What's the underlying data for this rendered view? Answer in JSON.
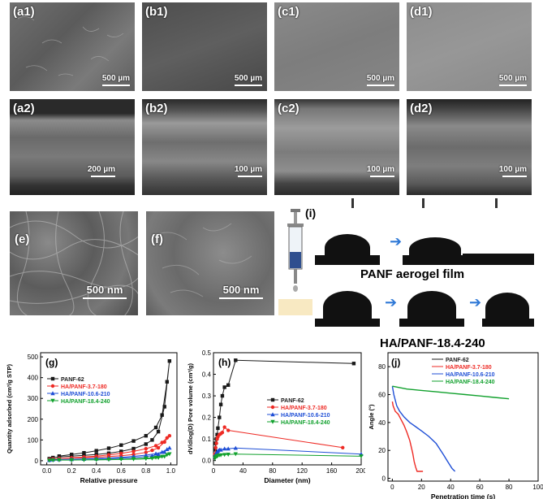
{
  "panels": {
    "a1": {
      "label": "(a1)",
      "scale": "500 µm"
    },
    "b1": {
      "label": "(b1)",
      "scale": "500 µm"
    },
    "c1": {
      "label": "(c1)",
      "scale": "500 µm"
    },
    "d1": {
      "label": "(d1)",
      "scale": "500 µm"
    },
    "a2": {
      "label": "(a2)",
      "scale": "200 µm"
    },
    "b2": {
      "label": "(b2)",
      "scale": "100 µm"
    },
    "c2": {
      "label": "(c2)",
      "scale": "100 µm"
    },
    "d2": {
      "label": "(d2)",
      "scale": "100 µm"
    },
    "e": {
      "label": "(e)",
      "scale": "500 nm"
    },
    "f": {
      "label": "(f)",
      "scale": "500 nm"
    },
    "i": {
      "label": "(i)"
    }
  },
  "captions": {
    "panf": "PANF aerogel film",
    "ha": "HA/PANF-18.4-240"
  },
  "colors": {
    "PANF-62": "#1a1a1a",
    "HA/PANF-3.7-180": "#ee2a24",
    "HA/PANF-10.6-210": "#1f4fd6",
    "HA/PANF-18.4-240": "#12a12e"
  },
  "chart_data": [
    {
      "type": "line",
      "panel": "(g)",
      "xlabel": "Relative pressure",
      "ylabel": "Quantity adsorbed (cm³/g STP)",
      "xlim": [
        -0.05,
        1.05
      ],
      "ylim": [
        -20,
        520
      ],
      "xticks": [
        "0.0",
        "0.2",
        "0.4",
        "0.6",
        "0.8",
        "1.0"
      ],
      "yticks": [
        "0",
        "100",
        "200",
        "300",
        "400",
        "500"
      ],
      "legend": "upper-left",
      "series": [
        {
          "name": "PANF-62",
          "color": "#1a1a1a",
          "marker": "square",
          "x": [
            0.02,
            0.05,
            0.1,
            0.2,
            0.3,
            0.4,
            0.5,
            0.6,
            0.7,
            0.8,
            0.85,
            0.9,
            0.95,
            0.99,
            0.97,
            0.93,
            0.88,
            0.8,
            0.7,
            0.6,
            0.5,
            0.4,
            0.3,
            0.2,
            0.1
          ],
          "y": [
            10,
            15,
            18,
            22,
            26,
            30,
            36,
            45,
            58,
            80,
            100,
            140,
            260,
            480,
            380,
            220,
            160,
            120,
            95,
            75,
            60,
            48,
            38,
            30,
            22
          ]
        },
        {
          "name": "HA/PANF-3.7-180",
          "color": "#ee2a24",
          "marker": "circle",
          "x": [
            0.02,
            0.05,
            0.1,
            0.2,
            0.3,
            0.4,
            0.5,
            0.6,
            0.7,
            0.8,
            0.85,
            0.9,
            0.95,
            0.99,
            0.97,
            0.93,
            0.88,
            0.8,
            0.7,
            0.6,
            0.5,
            0.4,
            0.3,
            0.2,
            0.1
          ],
          "y": [
            6,
            9,
            11,
            13,
            15,
            17,
            20,
            24,
            30,
            40,
            50,
            62,
            90,
            120,
            110,
            88,
            72,
            58,
            45,
            35,
            28,
            22,
            18,
            14,
            11
          ]
        },
        {
          "name": "HA/PANF-10.6-210",
          "color": "#1f4fd6",
          "marker": "triangle",
          "x": [
            0.02,
            0.05,
            0.1,
            0.2,
            0.3,
            0.4,
            0.5,
            0.6,
            0.7,
            0.8,
            0.85,
            0.9,
            0.95,
            0.99,
            0.97,
            0.93,
            0.88,
            0.8,
            0.7,
            0.6,
            0.5,
            0.4,
            0.3,
            0.2,
            0.1
          ],
          "y": [
            3,
            5,
            6,
            7,
            8,
            9,
            10,
            12,
            15,
            20,
            24,
            30,
            42,
            62,
            55,
            42,
            34,
            27,
            21,
            16,
            13,
            11,
            9,
            7,
            6
          ]
        },
        {
          "name": "HA/PANF-18.4-240",
          "color": "#12a12e",
          "marker": "triangle-down",
          "x": [
            0.02,
            0.05,
            0.1,
            0.2,
            0.3,
            0.4,
            0.5,
            0.6,
            0.7,
            0.8,
            0.85,
            0.9,
            0.95,
            0.99,
            0.97,
            0.93,
            0.88,
            0.8,
            0.7,
            0.6,
            0.5,
            0.4,
            0.3,
            0.2,
            0.1
          ],
          "y": [
            1,
            2,
            3,
            3,
            4,
            4,
            5,
            6,
            7,
            9,
            11,
            14,
            20,
            32,
            28,
            20,
            15,
            12,
            9,
            7,
            6,
            5,
            4,
            3,
            3
          ]
        }
      ]
    },
    {
      "type": "line",
      "panel": "(h)",
      "xlabel": "Diameter (nm)",
      "ylabel": "dV/dlog(D) Pore volume (cm³/g)",
      "xlim": [
        0,
        200
      ],
      "ylim": [
        -0.02,
        0.5
      ],
      "xticks": [
        "0",
        "40",
        "80",
        "120",
        "160",
        "200"
      ],
      "yticks": [
        "0.0",
        "0.1",
        "0.2",
        "0.3",
        "0.4",
        "0.5"
      ],
      "legend": "right",
      "series": [
        {
          "name": "PANF-62",
          "color": "#1a1a1a",
          "marker": "square",
          "x": [
            2,
            3,
            4,
            5,
            6,
            8,
            10,
            12,
            15,
            20,
            30,
            190
          ],
          "y": [
            0.05,
            0.08,
            0.1,
            0.12,
            0.15,
            0.2,
            0.26,
            0.3,
            0.34,
            0.35,
            0.465,
            0.45
          ]
        },
        {
          "name": "HA/PANF-3.7-180",
          "color": "#ee2a24",
          "marker": "circle",
          "x": [
            2,
            3,
            4,
            5,
            6,
            8,
            10,
            12,
            15,
            20,
            175
          ],
          "y": [
            0.03,
            0.06,
            0.08,
            0.1,
            0.11,
            0.12,
            0.125,
            0.13,
            0.155,
            0.14,
            0.06
          ]
        },
        {
          "name": "HA/PANF-10.6-210",
          "color": "#1f4fd6",
          "marker": "triangle",
          "x": [
            2,
            3,
            4,
            5,
            6,
            8,
            10,
            15,
            20,
            30,
            200
          ],
          "y": [
            0.02,
            0.03,
            0.035,
            0.04,
            0.045,
            0.05,
            0.05,
            0.055,
            0.055,
            0.058,
            0.03
          ]
        },
        {
          "name": "HA/PANF-18.4-240",
          "color": "#12a12e",
          "marker": "triangle-down",
          "x": [
            2,
            3,
            4,
            5,
            6,
            8,
            10,
            15,
            20,
            30,
            200
          ],
          "y": [
            0.01,
            0.015,
            0.02,
            0.02,
            0.022,
            0.025,
            0.025,
            0.027,
            0.028,
            0.03,
            0.02
          ]
        }
      ]
    },
    {
      "type": "line",
      "panel": "(j)",
      "title": "HA/PANF-18.4-240",
      "xlabel": "Penetration time (s)",
      "ylabel": "Angle (°)",
      "xlim": [
        -3,
        100
      ],
      "ylim": [
        -2,
        90
      ],
      "xticks": [
        "0",
        "20",
        "40",
        "60",
        "80",
        "100"
      ],
      "yticks": [
        "0",
        "20",
        "40",
        "60",
        "80"
      ],
      "legend": "top-center",
      "series": [
        {
          "name": "PANF-62",
          "color": "#1a1a1a",
          "x": [],
          "y": []
        },
        {
          "name": "HA/PANF-3.7-180",
          "color": "#ee2a24",
          "x": [
            0,
            0.5,
            2,
            4,
            6,
            8,
            10,
            12,
            14,
            15,
            16,
            17,
            18,
            19,
            20,
            21
          ],
          "y": [
            55,
            52,
            48,
            46,
            42,
            38,
            33,
            27,
            18,
            12,
            8,
            5,
            5,
            5,
            5,
            5
          ]
        },
        {
          "name": "HA/PANF-10.6-210",
          "color": "#1f4fd6",
          "x": [
            0,
            1,
            3,
            5,
            8,
            12,
            16,
            20,
            25,
            30,
            35,
            38,
            41,
            43
          ],
          "y": [
            66,
            60,
            52,
            48,
            44,
            40,
            37,
            34,
            30,
            25,
            17,
            12,
            7,
            5
          ]
        },
        {
          "name": "HA/PANF-18.4-240",
          "color": "#12a12e",
          "x": [
            0,
            10,
            20,
            30,
            40,
            50,
            60,
            70,
            80
          ],
          "y": [
            66,
            64,
            63,
            62,
            61,
            60,
            59,
            58,
            57
          ]
        }
      ]
    }
  ]
}
